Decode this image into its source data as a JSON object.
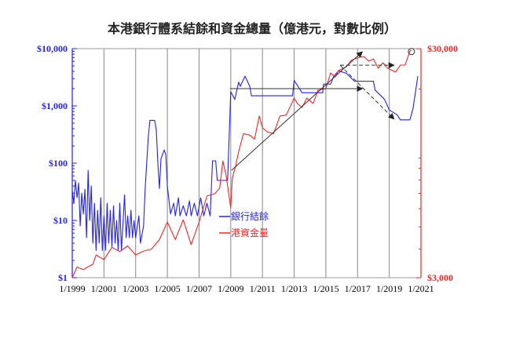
{
  "chart_data": {
    "type": "line",
    "title": "本港銀行體系結餘和資金總量（億港元，對數比例）",
    "xlabel": "",
    "ylabel_left": "",
    "ylabel_right": "",
    "x_range": [
      1999,
      2021
    ],
    "x_ticks": [
      {
        "value": 1999,
        "label": "1/1999"
      },
      {
        "value": 2001,
        "label": "1/2001"
      },
      {
        "value": 2003,
        "label": "1/2003"
      },
      {
        "value": 2005,
        "label": "1/2005"
      },
      {
        "value": 2007,
        "label": "1/2007"
      },
      {
        "value": 2009,
        "label": "1/2009"
      },
      {
        "value": 2011,
        "label": "1/2011"
      },
      {
        "value": 2013,
        "label": "1/2013"
      },
      {
        "value": 2015,
        "label": "1/2015"
      },
      {
        "value": 2017,
        "label": "1/2017"
      },
      {
        "value": 2019,
        "label": "1/2019"
      },
      {
        "value": 2021,
        "label": "1/2021"
      }
    ],
    "y_left": {
      "scale": "log",
      "range": [
        1,
        10000
      ],
      "ticks": [
        {
          "value": 10000,
          "label": "$10,000"
        },
        {
          "value": 1000,
          "label": "$1,000"
        },
        {
          "value": 100,
          "label": "$100"
        },
        {
          "value": 10,
          "label": "$10"
        },
        {
          "value": 1,
          "label": "$1"
        }
      ]
    },
    "y_right": {
      "scale": "log",
      "range": [
        3000,
        30000
      ],
      "ticks": [
        {
          "value": 30000,
          "label": "$30,000"
        },
        {
          "value": 3000,
          "label": "$3,000"
        }
      ]
    },
    "grid": "vertical",
    "legend_position": "center",
    "series": [
      {
        "name": "銀行結餘",
        "axis": "left",
        "color": "#1f1fff",
        "points": [
          [
            1999.0,
            33
          ],
          [
            1999.1,
            20
          ],
          [
            1999.2,
            50
          ],
          [
            1999.3,
            25
          ],
          [
            1999.4,
            45
          ],
          [
            1999.5,
            8
          ],
          [
            1999.6,
            30
          ],
          [
            1999.7,
            13
          ],
          [
            1999.8,
            35
          ],
          [
            1999.9,
            5
          ],
          [
            2000.0,
            75
          ],
          [
            2000.1,
            10
          ],
          [
            2000.2,
            40
          ],
          [
            2000.3,
            4
          ],
          [
            2000.4,
            20
          ],
          [
            2000.5,
            3
          ],
          [
            2000.6,
            15
          ],
          [
            2000.7,
            4
          ],
          [
            2000.8,
            25
          ],
          [
            2000.9,
            3
          ],
          [
            2001.0,
            12
          ],
          [
            2001.1,
            3
          ],
          [
            2001.2,
            20
          ],
          [
            2001.3,
            4
          ],
          [
            2001.4,
            15
          ],
          [
            2001.5,
            3.5
          ],
          [
            2001.6,
            18
          ],
          [
            2001.7,
            4
          ],
          [
            2001.8,
            10
          ],
          [
            2001.9,
            3
          ],
          [
            2002.0,
            20
          ],
          [
            2002.1,
            3
          ],
          [
            2002.3,
            28
          ],
          [
            2002.4,
            5
          ],
          [
            2002.5,
            12
          ],
          [
            2002.6,
            5
          ],
          [
            2002.7,
            15
          ],
          [
            2002.8,
            5
          ],
          [
            2002.9,
            10
          ],
          [
            2003.0,
            5
          ],
          [
            2003.2,
            12
          ],
          [
            2003.3,
            4
          ],
          [
            2003.5,
            8
          ],
          [
            2003.6,
            35
          ],
          [
            2003.8,
            300
          ],
          [
            2003.9,
            560
          ],
          [
            2004.2,
            560
          ],
          [
            2004.3,
            380
          ],
          [
            2004.4,
            100
          ],
          [
            2004.5,
            36
          ],
          [
            2004.6,
            120
          ],
          [
            2004.8,
            170
          ],
          [
            2004.9,
            140
          ],
          [
            2005.0,
            40
          ],
          [
            2005.2,
            13
          ],
          [
            2005.4,
            20
          ],
          [
            2005.5,
            12
          ],
          [
            2005.7,
            25
          ],
          [
            2005.8,
            12
          ],
          [
            2006.0,
            18
          ],
          [
            2006.2,
            12
          ],
          [
            2006.4,
            22
          ],
          [
            2006.5,
            12
          ],
          [
            2006.7,
            20
          ],
          [
            2006.9,
            12
          ],
          [
            2007.1,
            25
          ],
          [
            2007.3,
            12
          ],
          [
            2007.5,
            20
          ],
          [
            2007.7,
            12
          ],
          [
            2007.85,
            110
          ],
          [
            2008.05,
            110
          ],
          [
            2008.15,
            50
          ],
          [
            2008.8,
            50
          ],
          [
            2008.9,
            300
          ],
          [
            2009.0,
            1770
          ],
          [
            2009.25,
            1300
          ],
          [
            2009.5,
            2600
          ],
          [
            2009.6,
            2200
          ],
          [
            2009.9,
            3300
          ],
          [
            2010.2,
            2200
          ],
          [
            2010.3,
            1500
          ],
          [
            2012.9,
            1500
          ],
          [
            2013.0,
            2800
          ],
          [
            2013.5,
            1700
          ],
          [
            2014.8,
            1700
          ],
          [
            2014.85,
            2400
          ],
          [
            2015.3,
            2400
          ],
          [
            2015.5,
            3300
          ],
          [
            2015.8,
            4100
          ],
          [
            2016.3,
            3700
          ],
          [
            2016.8,
            2700
          ],
          [
            2018.0,
            2700
          ],
          [
            2018.1,
            1900
          ],
          [
            2018.7,
            1300
          ],
          [
            2019.0,
            850
          ],
          [
            2019.5,
            700
          ],
          [
            2019.7,
            570
          ],
          [
            2020.3,
            570
          ],
          [
            2020.5,
            900
          ],
          [
            2020.8,
            3300
          ]
        ]
      },
      {
        "name": "港資金量",
        "axis": "right",
        "color": "#ff1f1f",
        "points": [
          [
            1999.0,
            3000
          ],
          [
            1999.3,
            3340
          ],
          [
            1999.7,
            3250
          ],
          [
            2000.0,
            3350
          ],
          [
            2000.3,
            3430
          ],
          [
            2000.5,
            3770
          ],
          [
            2001.0,
            3600
          ],
          [
            2001.5,
            4070
          ],
          [
            2002.0,
            3900
          ],
          [
            2002.5,
            4130
          ],
          [
            2003.0,
            3770
          ],
          [
            2003.5,
            3920
          ],
          [
            2004.0,
            4000
          ],
          [
            2004.5,
            4400
          ],
          [
            2005.0,
            5250
          ],
          [
            2005.5,
            4400
          ],
          [
            2006.0,
            5370
          ],
          [
            2006.5,
            4180
          ],
          [
            2007.0,
            5250
          ],
          [
            2007.5,
            6820
          ],
          [
            2008.0,
            6980
          ],
          [
            2008.3,
            7380
          ],
          [
            2008.5,
            9710
          ],
          [
            2008.7,
            8430
          ],
          [
            2009.0,
            6050
          ],
          [
            2009.1,
            8170
          ],
          [
            2009.3,
            9190
          ],
          [
            2009.5,
            10680
          ],
          [
            2009.8,
            12760
          ],
          [
            2010.2,
            12570
          ],
          [
            2010.5,
            12090
          ],
          [
            2010.8,
            15240
          ],
          [
            2011.0,
            13530
          ],
          [
            2011.3,
            13000
          ],
          [
            2011.7,
            12760
          ],
          [
            2012.1,
            15240
          ],
          [
            2012.5,
            15380
          ],
          [
            2013.0,
            18250
          ],
          [
            2013.2,
            17270
          ],
          [
            2013.5,
            16610
          ],
          [
            2013.8,
            18250
          ],
          [
            2014.2,
            17270
          ],
          [
            2014.5,
            19750
          ],
          [
            2015.0,
            20070
          ],
          [
            2015.3,
            23510
          ],
          [
            2015.6,
            22600
          ],
          [
            2015.8,
            24060
          ],
          [
            2016.3,
            25020
          ],
          [
            2016.6,
            26670
          ],
          [
            2017.1,
            27480
          ],
          [
            2017.4,
            27720
          ],
          [
            2017.7,
            26440
          ],
          [
            2018.0,
            27060
          ],
          [
            2018.3,
            24640
          ],
          [
            2018.6,
            26030
          ],
          [
            2018.9,
            24640
          ],
          [
            2019.4,
            23690
          ],
          [
            2019.7,
            25420
          ],
          [
            2020.0,
            25420
          ],
          [
            2020.3,
            29310
          ],
          [
            2020.4,
            29520
          ]
        ]
      }
    ],
    "annotations": [
      {
        "type": "arrow",
        "style": "solid",
        "from": [
          2009.05,
          75
        ],
        "to": [
          2017.3,
          8800
        ]
      },
      {
        "type": "arrow",
        "style": "solid",
        "from": [
          2008.95,
          2000
        ],
        "to": [
          2017.3,
          2000
        ]
      },
      {
        "type": "arrow",
        "style": "dashed",
        "from": [
          2015.9,
          5130
        ],
        "to": [
          2019.3,
          5130
        ]
      },
      {
        "type": "arrow",
        "style": "dashed",
        "from": [
          2015.9,
          5130
        ],
        "to": [
          2019.3,
          590
        ]
      },
      {
        "type": "circle",
        "at": [
          2020.4,
          8900
        ]
      }
    ]
  }
}
